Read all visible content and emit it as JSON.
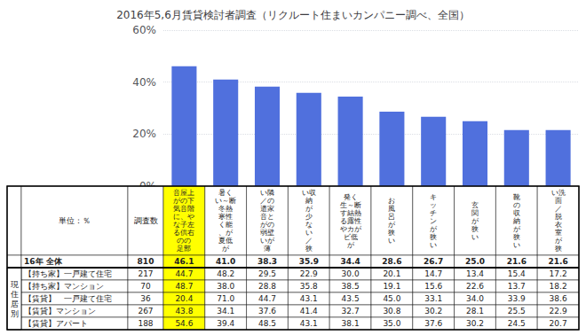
{
  "chart_data": [
    {
      "type": "bar",
      "title": "2016年5,6月賃貸検討者調査（リクルート住まいカンパニー調べ、全国）",
      "values": [
        46.1,
        41.0,
        38.3,
        35.9,
        34.4,
        28.6,
        26.7,
        25.0,
        21.6,
        21.6
      ],
      "ylim": [
        0,
        60
      ],
      "yticks": [
        {
          "value": 0,
          "label": "0%"
        },
        {
          "value": 20,
          "label": "20%"
        },
        {
          "value": 40,
          "label": "40%"
        },
        {
          "value": 60,
          "label": "60%"
        }
      ],
      "grid": true,
      "tick_labels": "y"
    },
    {
      "type": "table",
      "unit_label": "単位：％",
      "survey_header": "調査数",
      "section_label": "現\n住\n居\n別",
      "columns": [
        {
          "name": "音屋上\nがの下\n気音階\nに、や\nな子左\nる供右\nのの\n足部",
          "color": "#FFFF00"
        },
        {
          "name": "暑く\nい～断\n冬熱\n寒性\nく能\n、が\n夏低\nが"
        },
        {
          "name": "い隣\n／の\n遣家\n音と\nがの\n弱壁\nいが\n薄"
        },
        {
          "name": "い収\n納\nが\n少\nな\nい\n／\n狭"
        },
        {
          "name": "発く\n生～断\nす結熱\nる露性\nやカが\nビ低\nが"
        },
        {
          "name": "お\n風\n呂\nが\n狭\nい"
        },
        {
          "name": "キ\nッ\nチ\nン\nが\n狭\nい"
        },
        {
          "name": "玄\n関\nが\n狭\nい"
        },
        {
          "name": "靴\nの\n収\n納\nが\n狭\nい"
        },
        {
          "name": "い洗\n面\n／\n脱\n衣\n室\nが\n狭"
        }
      ],
      "rows": [
        {
          "label": "16年 全体",
          "survey": 810,
          "values": [
            46.1,
            41.0,
            38.3,
            35.9,
            34.4,
            28.6,
            26.7,
            25.0,
            21.6,
            21.6
          ],
          "value_labels": [
            "46.1",
            "41.0",
            "38.3",
            "35.9",
            "34.4",
            "28.6",
            "26.7",
            "25.0",
            "21.6",
            "21.6"
          ]
        },
        {
          "label": "【持ち家】一戸建て住宅",
          "survey": 217,
          "values": [
            44.7,
            48.2,
            29.5,
            22.9,
            30.0,
            20.1,
            14.7,
            13.4,
            15.4,
            17.2
          ],
          "value_labels": [
            "44.7",
            "48.2",
            "29.5",
            "22.9",
            "30.0",
            "20.1",
            "14.7",
            "13.4",
            "15.4",
            "17.2"
          ]
        },
        {
          "label": "【持ち家】マンション",
          "survey": 70,
          "values": [
            48.7,
            38.0,
            28.8,
            35.8,
            38.5,
            19.1,
            15.6,
            22.6,
            13.7,
            18.2
          ],
          "value_labels": [
            "48.7",
            "38.0",
            "28.8",
            "35.8",
            "38.5",
            "19.1",
            "15.6",
            "22.6",
            "13.7",
            "18.2"
          ]
        },
        {
          "label": "【賃貸】　一戸建て住宅",
          "survey": 36,
          "values": [
            20.4,
            71.0,
            44.7,
            43.1,
            43.5,
            45.0,
            33.1,
            34.0,
            33.9,
            38.6
          ],
          "value_labels": [
            "20.4",
            "71.0",
            "44.7",
            "43.1",
            "43.5",
            "45.0",
            "33.1",
            "34.0",
            "33.9",
            "38.6"
          ]
        },
        {
          "label": "【賃貸】マンション",
          "survey": 267,
          "values": [
            43.8,
            34.1,
            37.6,
            41.4,
            32.7,
            30.8,
            30.2,
            28.1,
            25.5,
            22.9
          ],
          "value_labels": [
            "43.8",
            "34.1",
            "37.6",
            "41.4",
            "32.7",
            "30.8",
            "30.2",
            "28.1",
            "25.5",
            "22.9"
          ]
        },
        {
          "label": "【賃貸】アパート",
          "survey": 188,
          "values": [
            54.6,
            39.4,
            48.5,
            43.1,
            38.1,
            35.0,
            37.6,
            30.2,
            24.5,
            20.7
          ],
          "value_labels": [
            "54.6",
            "39.4",
            "48.5",
            "43.1",
            "38.1",
            "35.0",
            "37.6",
            "30.2",
            "24.5",
            "20.7"
          ]
        }
      ]
    }
  ]
}
